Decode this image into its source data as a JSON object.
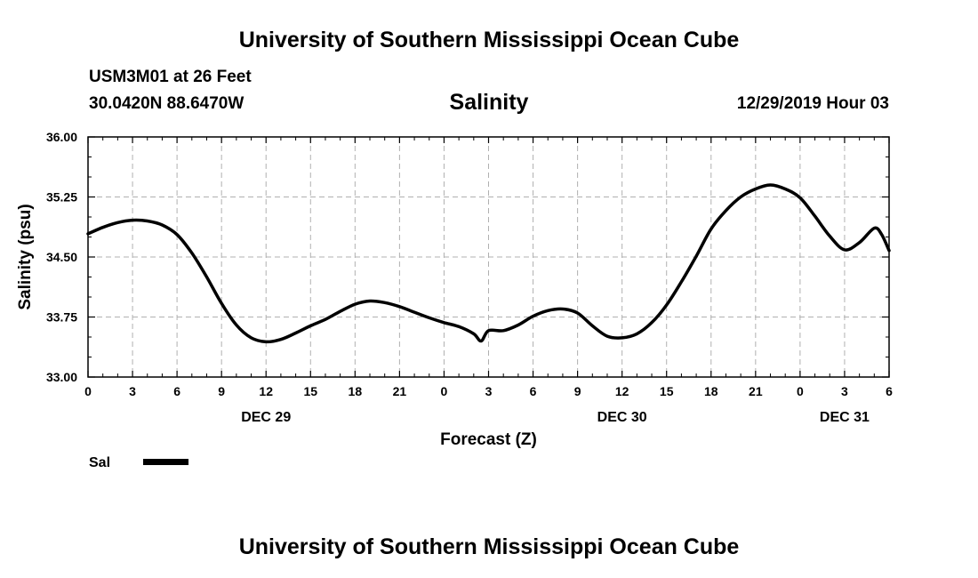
{
  "header": {
    "org_title": "University of Southern Mississippi Ocean Cube",
    "station": "USM3M01 at 26 Feet",
    "coords": "30.0420N 88.6470W",
    "timestamp": "12/29/2019 Hour 03"
  },
  "footer": {
    "org_title": "University of Southern Mississippi Ocean Cube"
  },
  "colors": {
    "line": "#000000",
    "grid": "#b0b0b0"
  },
  "chart_data": {
    "type": "line",
    "title": "Salinity",
    "xlabel": "Forecast (Z)",
    "ylabel": "Salinity (psu)",
    "xlim": [
      0,
      54
    ],
    "ylim": [
      33.0,
      36.0
    ],
    "x_ticks": [
      0,
      3,
      6,
      9,
      12,
      15,
      18,
      21,
      24,
      27,
      30,
      33,
      36,
      39,
      42,
      45,
      48,
      51,
      54
    ],
    "x_tick_labels": [
      "0",
      "3",
      "6",
      "9",
      "12",
      "15",
      "18",
      "21",
      "0",
      "3",
      "6",
      "9",
      "12",
      "15",
      "18",
      "21",
      "0",
      "3",
      "6"
    ],
    "y_ticks": [
      33.0,
      33.75,
      34.5,
      35.25,
      36.0
    ],
    "y_tick_labels": [
      "33.00",
      "33.75",
      "34.50",
      "35.25",
      "36.00"
    ],
    "date_labels": [
      {
        "x": 12,
        "label": "DEC 29"
      },
      {
        "x": 36,
        "label": "DEC 30"
      },
      {
        "x": 51,
        "label": "DEC 31"
      }
    ],
    "grid": true,
    "legend": [
      {
        "name": "Sal",
        "placement": "bottom-left"
      }
    ],
    "series": [
      {
        "name": "Sal",
        "x": [
          0,
          1,
          2,
          3,
          4,
          5,
          6,
          7,
          8,
          9,
          10,
          11,
          12,
          13,
          14,
          15,
          16,
          17,
          18,
          19,
          20,
          21,
          22,
          23,
          24,
          25,
          26,
          26.5,
          27,
          28,
          29,
          30,
          31,
          32,
          33,
          34,
          35,
          36,
          37,
          38,
          39,
          40,
          41,
          42,
          43,
          44,
          45,
          46,
          47,
          48,
          49,
          50,
          51,
          52,
          53,
          53.5,
          54
        ],
        "values": [
          34.79,
          34.87,
          34.93,
          34.96,
          34.95,
          34.9,
          34.78,
          34.55,
          34.25,
          33.92,
          33.65,
          33.49,
          33.44,
          33.47,
          33.55,
          33.64,
          33.72,
          33.82,
          33.91,
          33.95,
          33.93,
          33.88,
          33.81,
          33.74,
          33.68,
          33.63,
          33.54,
          33.45,
          33.58,
          33.58,
          33.65,
          33.76,
          33.83,
          33.85,
          33.8,
          33.64,
          33.51,
          33.49,
          33.54,
          33.68,
          33.9,
          34.19,
          34.51,
          34.85,
          35.08,
          35.25,
          35.35,
          35.4,
          35.35,
          35.24,
          35.01,
          34.76,
          34.59,
          34.68,
          34.86,
          34.78,
          34.58
        ]
      }
    ]
  }
}
